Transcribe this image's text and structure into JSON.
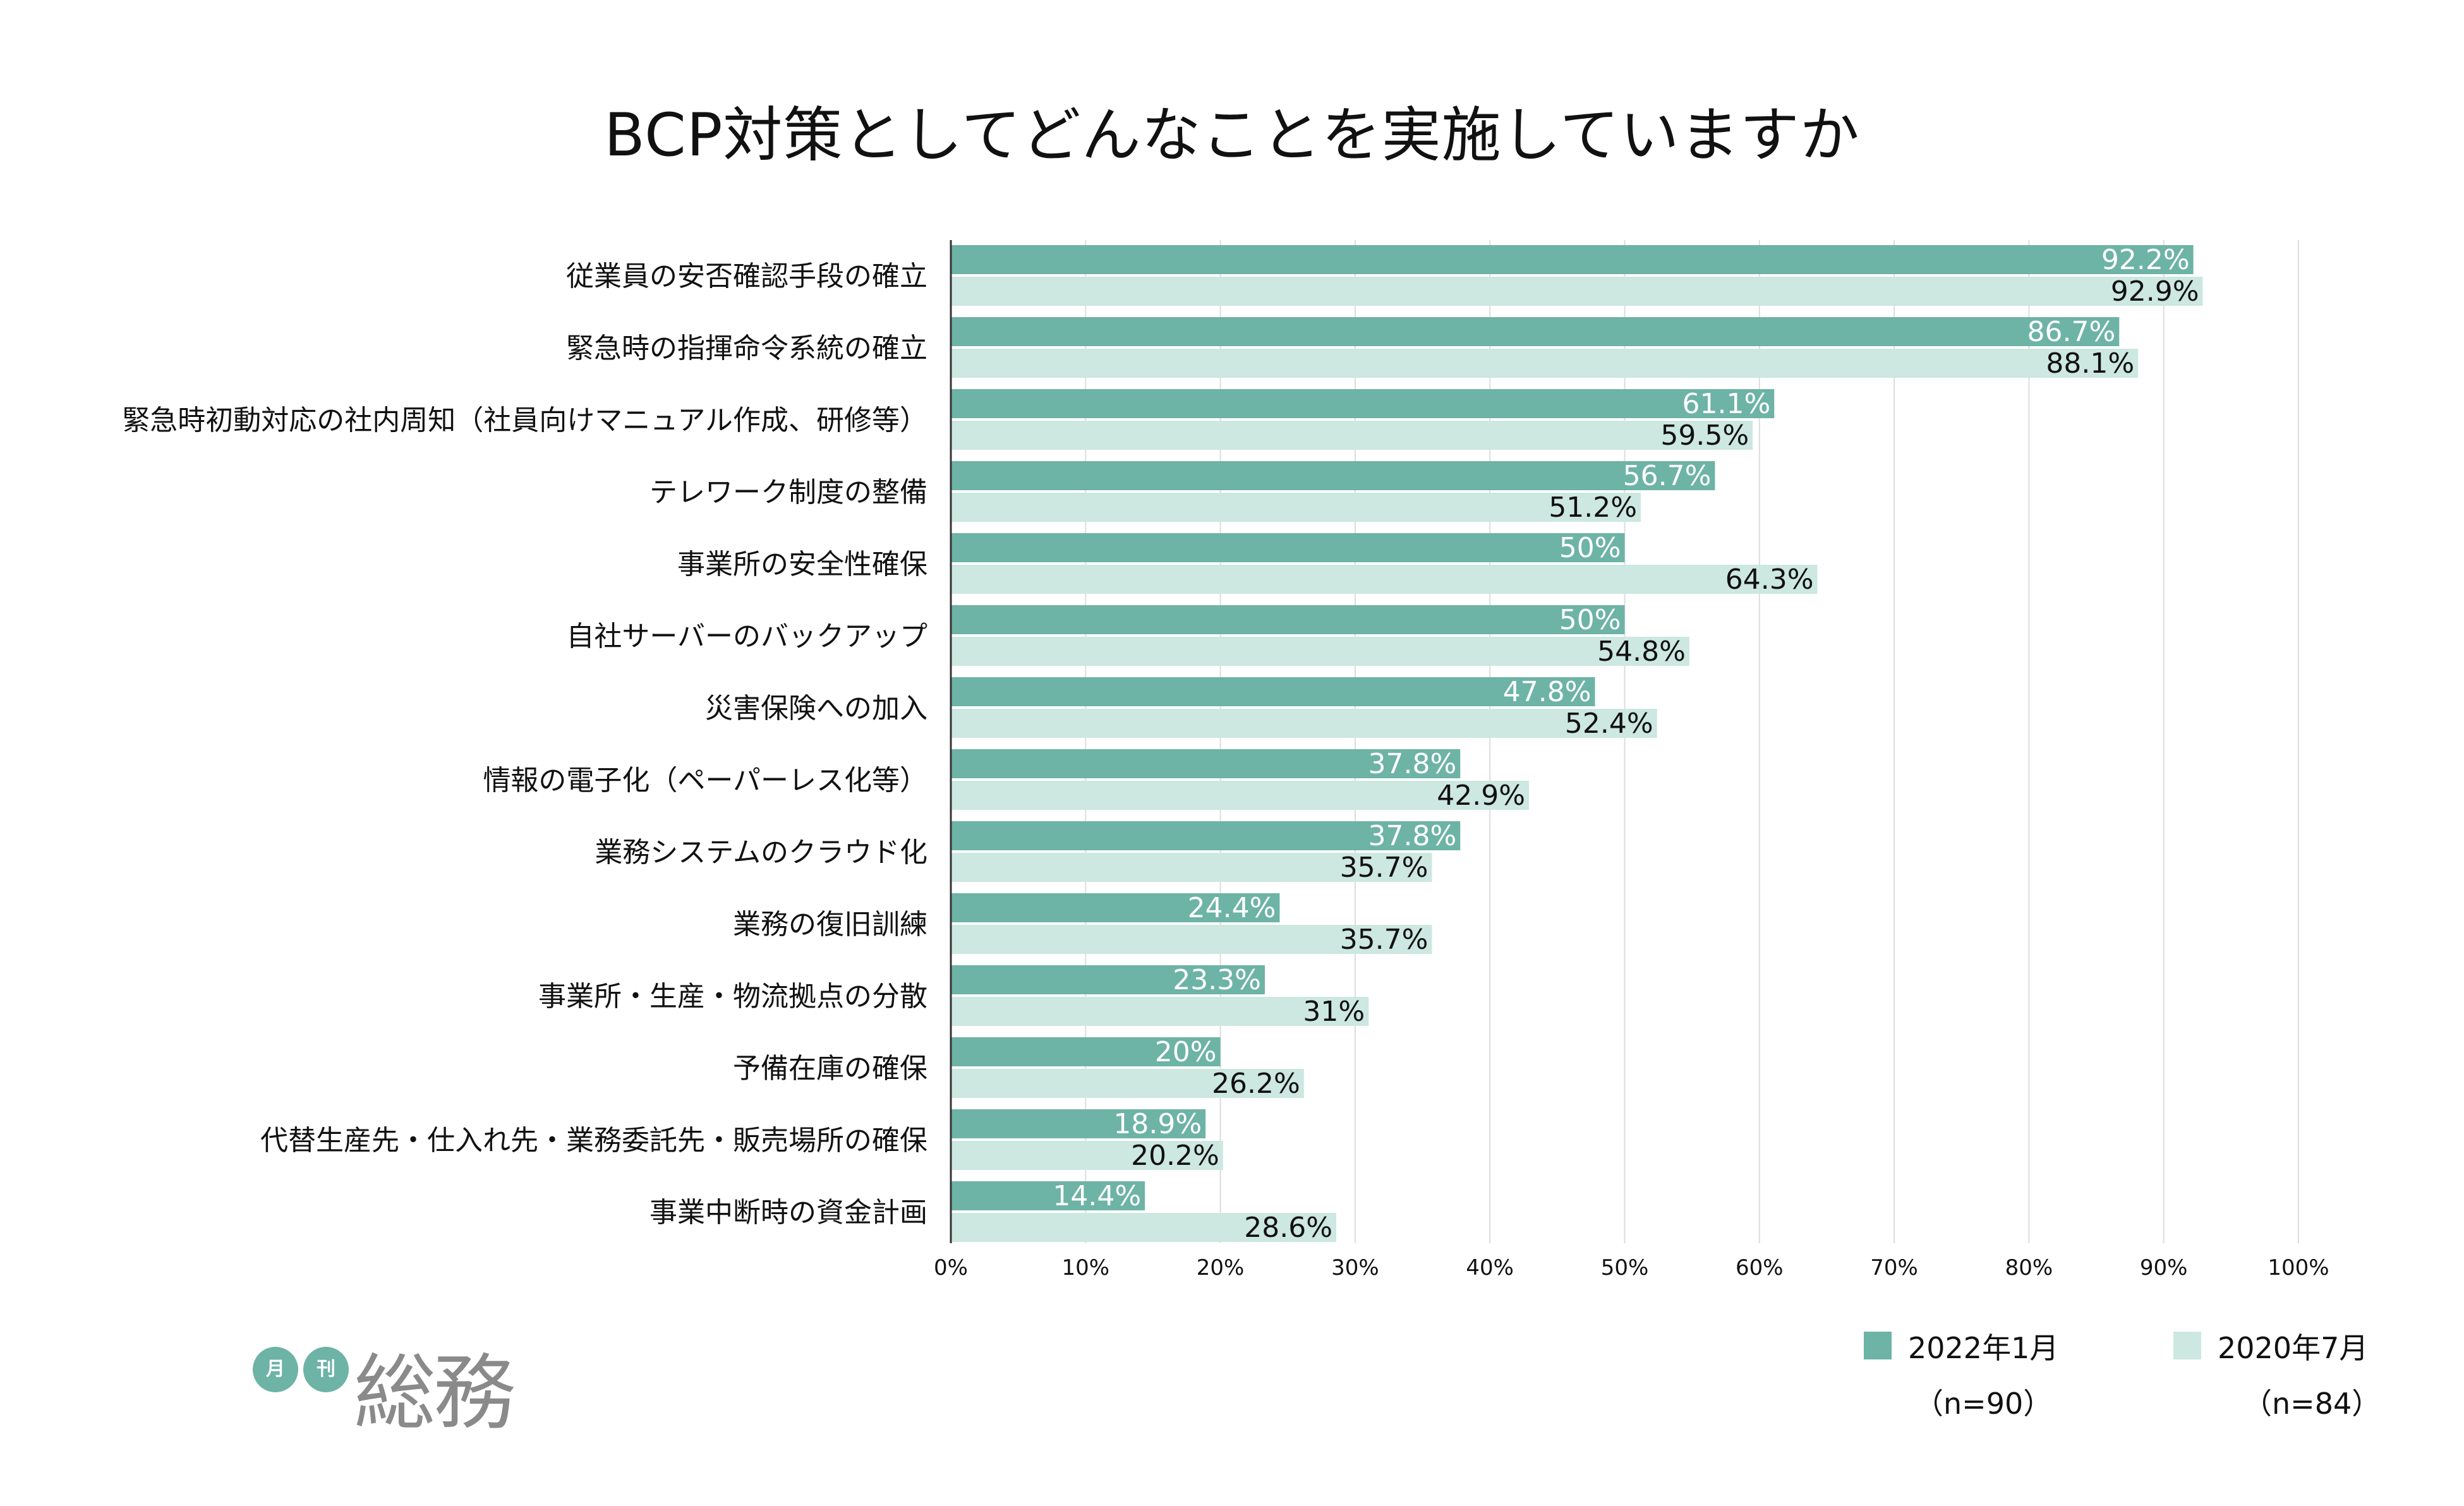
{
  "chart_data": {
    "type": "bar",
    "orientation": "horizontal",
    "title": "BCP対策としてどんなことを実施していますか",
    "categories": [
      "従業員の安否確認手段の確立",
      "緊急時の指揮命令系統の確立",
      "緊急時初動対応の社内周知（社員向けマニュアル作成、研修等）",
      "テレワーク制度の整備",
      "事業所の安全性確保",
      "自社サーバーのバックアップ",
      "災害保険への加入",
      "情報の電子化（ペーパーレス化等）",
      "業務システムのクラウド化",
      "業務の復旧訓練",
      "事業所・生産・物流拠点の分散",
      "予備在庫の確保",
      "代替生産先・仕入れ先・業務委託先・販売場所の確保",
      "事業中断時の資金計画"
    ],
    "series": [
      {
        "name": "2022年1月",
        "n": "（n=90）",
        "color": "#6db3a6",
        "values": [
          92.2,
          86.7,
          61.1,
          56.7,
          50,
          50,
          47.8,
          37.8,
          37.8,
          24.4,
          23.3,
          20,
          18.9,
          14.4
        ],
        "labels": [
          "92.2%",
          "86.7%",
          "61.1%",
          "56.7%",
          "50%",
          "50%",
          "47.8%",
          "37.8%",
          "37.8%",
          "24.4%",
          "23.3%",
          "20%",
          "18.9%",
          "14.4%"
        ]
      },
      {
        "name": "2020年7月",
        "n": "（n=84）",
        "color": "#cde7e1",
        "values": [
          92.9,
          88.1,
          59.5,
          51.2,
          64.3,
          54.8,
          52.4,
          42.9,
          35.7,
          35.7,
          31,
          26.2,
          20.2,
          28.6
        ],
        "labels": [
          "92.9%",
          "88.1%",
          "59.5%",
          "51.2%",
          "64.3%",
          "54.8%",
          "52.4%",
          "42.9%",
          "35.7%",
          "35.7%",
          "31%",
          "26.2%",
          "20.2%",
          "28.6%"
        ]
      }
    ],
    "xlim": [
      0,
      100
    ],
    "xticks": [
      "0%",
      "10%",
      "20%",
      "30%",
      "40%",
      "50%",
      "60%",
      "70%",
      "80%",
      "90%",
      "100%"
    ],
    "grid": true,
    "legend_position": "bottom-right"
  },
  "logo": {
    "badge_1": "月",
    "badge_2": "刊",
    "wordmark": "総務"
  }
}
